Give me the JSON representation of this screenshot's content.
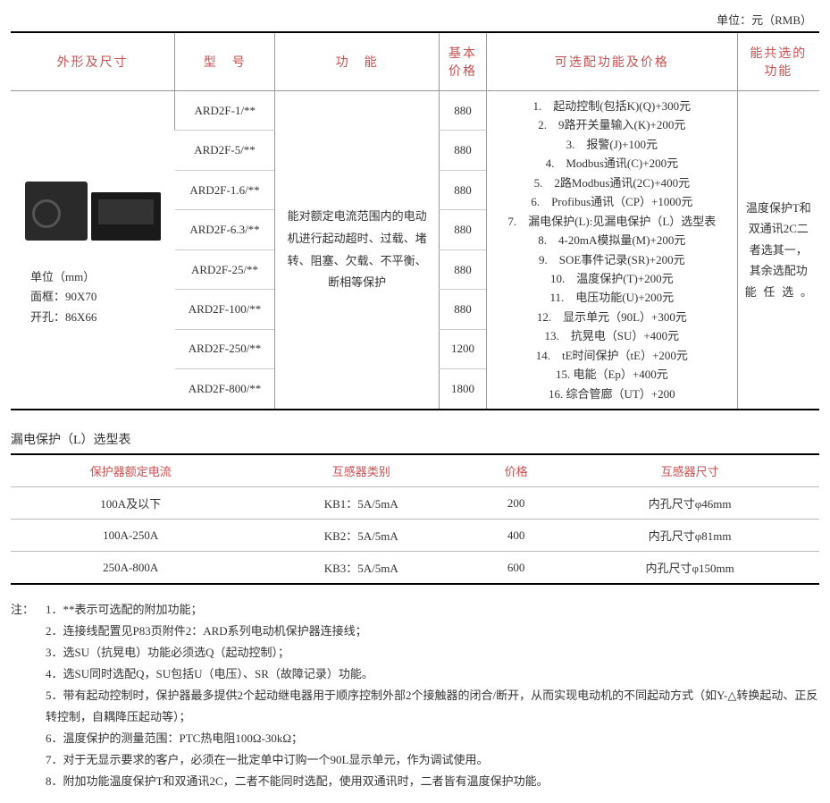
{
  "unit_label": "单位：元（RMB）",
  "main_headers": {
    "shape": "外形及尺寸",
    "model": "型　号",
    "func": "功　能",
    "price": "基本价格",
    "options": "可选配功能及价格",
    "shared": "能共选的功能"
  },
  "shape_info": {
    "unit": "单位（mm）",
    "frame": "面框：90X70",
    "hole": "开孔：86X66"
  },
  "models": [
    {
      "name": "ARD2F-1/**",
      "price": "880"
    },
    {
      "name": "ARD2F-5/**",
      "price": "880"
    },
    {
      "name": "ARD2F-1.6/**",
      "price": "880"
    },
    {
      "name": "ARD2F-6.3/**",
      "price": "880"
    },
    {
      "name": "ARD2F-25/**",
      "price": "880"
    },
    {
      "name": "ARD2F-100/**",
      "price": "880"
    },
    {
      "name": "ARD2F-250/**",
      "price": "1200"
    },
    {
      "name": "ARD2F-800/**",
      "price": "1800"
    }
  ],
  "func_text": "能对额定电流范围内的电动机进行起动超时、过载、堵转、阻塞、欠载、不平衡、断相等保护",
  "options": [
    "1.　起动控制(包括K)(Q)+300元",
    "2.　9路开关量输入(K)+200元",
    "3.　报警(J)+100元",
    "4.　Modbus通讯(C)+200元",
    "5.　2路Modbus通讯(2C)+400元",
    "6.　Profibus通讯（CP）+1000元",
    "7.　漏电保护(L):见漏电保护（L）选型表",
    "8.　4-20mA模拟量(M)+200元",
    "9.　SOE事件记录(SR)+200元",
    "10.　温度保护(T)+200元",
    "11.　电压功能(U)+200元",
    "12.　显示单元（90L）+300元",
    "13.　抗晃电（SU）+400元",
    "14.　tE时间保护（tE）+200元",
    "15. 电能（Ep）+400元",
    "16. 综合管廊（UT）+200"
  ],
  "shared_text": "温度保护T和双通讯2C二者选其一，其余选配功能任选。",
  "leak_title": "漏电保护（L）选型表",
  "leak_headers": {
    "rated": "保护器额定电流",
    "type": "互感器类别",
    "price": "价格",
    "size": "互感器尺寸"
  },
  "leak_rows": [
    {
      "rated": "100A及以下",
      "type": "KB1：5A/5mA",
      "price": "200",
      "size": "内孔尺寸φ46mm"
    },
    {
      "rated": "100A-250A",
      "type": "KB2：5A/5mA",
      "price": "400",
      "size": "内孔尺寸φ81mm"
    },
    {
      "rated": "250A-800A",
      "type": "KB3：5A/5mA",
      "price": "600",
      "size": "内孔尺寸φ150mm"
    }
  ],
  "notes_label": "注：",
  "notes": [
    "1．**表示可选配的附加功能；",
    "2．连接线配置见P83页附件2：ARD系列电动机保护器连接线；",
    "3．选SU（抗晃电）功能必须选Q（起动控制）；",
    "4．选SU同时选配Q，SU包括U（电压）、SR（故障记录）功能。",
    "5．带有起动控制时，保护器最多提供2个起动继电器用于顺序控制外部2个接触器的闭合/断开，从而实现电动机的不同起动方式（如Y-△转换起动、正反转控制，自耦降压起动等）；",
    "6．温度保护的测量范围：PTC热电阻100Ω-30kΩ；",
    "7．对于无显示要求的客户，必须在一批定单中订购一个90L显示单元，作为调试使用。",
    "8．附加功能温度保护T和双通讯2C，二者不能同时选配，使用双通讯时，二者皆有温度保护功能。"
  ],
  "colors": {
    "header_text": "#c94f4f",
    "border_strong": "#000000",
    "border_light": "#bbbbbb"
  }
}
